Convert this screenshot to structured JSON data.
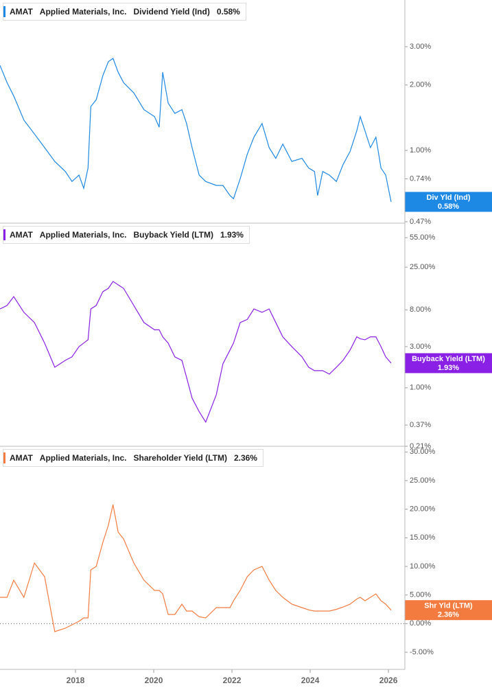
{
  "chart_data": [
    {
      "type": "line",
      "ticker": "AMAT",
      "company": "Applied Materials, Inc.",
      "log_scale": true,
      "xlim": [
        2016.07,
        2026.42
      ],
      "ylim": [
        0.463,
        4.92
      ],
      "yticks": [
        {
          "value": 0.47,
          "label": "0.47%"
        },
        {
          "value": 0.74,
          "label": "0.74%"
        },
        {
          "value": 1,
          "label": "1.00%"
        },
        {
          "value": 2,
          "label": "2.00%"
        },
        {
          "value": 3,
          "label": "3.00%"
        }
      ],
      "x": [
        2016.07,
        2016.25,
        2016.42,
        2016.68,
        2016.95,
        2017.21,
        2017.47,
        2017.74,
        2017.91,
        2018.09,
        2018.21,
        2018.32,
        2018.39,
        2018.53,
        2018.7,
        2018.84,
        2018.96,
        2019.09,
        2019.23,
        2019.49,
        2019.75,
        2020.02,
        2020.14,
        2020.23,
        2020.37,
        2020.54,
        2020.72,
        2020.84,
        2020.98,
        2021.16,
        2021.33,
        2021.6,
        2021.77,
        2021.95,
        2022.04,
        2022.21,
        2022.39,
        2022.56,
        2022.77,
        2022.95,
        2023.12,
        2023.3,
        2023.53,
        2023.79,
        2023.96,
        2024.11,
        2024.19,
        2024.32,
        2024.49,
        2024.67,
        2024.84,
        2025.02,
        2025.19,
        2025.28,
        2025.4,
        2025.54,
        2025.68,
        2025.81,
        2025.93,
        2026.07
      ],
      "series": [
        {
          "name": "Dividend Yield (Ind)",
          "short_name": "Div Yld (Ind)",
          "color": "#1e88e5",
          "last_label": "0.58%",
          "values": [
            2.46,
            2.05,
            1.78,
            1.38,
            1.19,
            1.03,
            0.89,
            0.8,
            0.72,
            0.77,
            0.67,
            0.83,
            1.59,
            1.71,
            2.21,
            2.56,
            2.65,
            2.29,
            2.05,
            1.84,
            1.54,
            1.43,
            1.28,
            2.29,
            1.65,
            1.48,
            1.54,
            1.33,
            1.03,
            0.77,
            0.72,
            0.69,
            0.69,
            0.62,
            0.6,
            0.74,
            0.96,
            1.15,
            1.33,
            1.03,
            0.92,
            1.07,
            0.89,
            0.92,
            0.83,
            0.8,
            0.62,
            0.8,
            0.77,
            0.72,
            0.86,
            0.99,
            1.23,
            1.43,
            1.23,
            1.03,
            1.15,
            0.83,
            0.77,
            0.58
          ]
        }
      ]
    },
    {
      "type": "line",
      "ticker": "AMAT",
      "company": "Applied Materials, Inc.",
      "log_scale": true,
      "xlim": [
        2016.07,
        2026.42
      ],
      "ylim": [
        0.21,
        81
      ],
      "yticks": [
        {
          "value": 0.21,
          "label": "0.21%"
        },
        {
          "value": 0.37,
          "label": "0.37%"
        },
        {
          "value": 1,
          "label": "1.00%"
        },
        {
          "value": 3,
          "label": "3.00%"
        },
        {
          "value": 8,
          "label": "8.00%"
        },
        {
          "value": 25,
          "label": "25.00%"
        },
        {
          "value": 55,
          "label": "55.00%"
        }
      ],
      "x": [
        2016.07,
        2016.25,
        2016.42,
        2016.68,
        2016.95,
        2017.21,
        2017.47,
        2017.74,
        2017.91,
        2018.09,
        2018.21,
        2018.32,
        2018.39,
        2018.53,
        2018.7,
        2018.84,
        2018.96,
        2019.09,
        2019.23,
        2019.49,
        2019.75,
        2020.02,
        2020.14,
        2020.23,
        2020.37,
        2020.54,
        2020.72,
        2020.84,
        2020.98,
        2021.16,
        2021.33,
        2021.6,
        2021.77,
        2021.95,
        2022.04,
        2022.21,
        2022.39,
        2022.56,
        2022.77,
        2022.95,
        2023.12,
        2023.3,
        2023.53,
        2023.79,
        2023.96,
        2024.11,
        2024.19,
        2024.32,
        2024.49,
        2024.67,
        2024.84,
        2025.02,
        2025.19,
        2025.28,
        2025.4,
        2025.54,
        2025.68,
        2025.81,
        2025.93,
        2026.07
      ],
      "series": [
        {
          "name": "Buyback Yield (LTM)",
          "short_name": "Buyback Yield (LTM)",
          "color": "#8a1fe6",
          "last_label": "1.93%",
          "values": [
            8.2,
            9.0,
            11.4,
            7.5,
            5.7,
            3.3,
            1.73,
            2.08,
            2.28,
            3.0,
            3.3,
            3.6,
            8.2,
            9.0,
            13.0,
            14.2,
            17.1,
            15.6,
            14.2,
            9.0,
            5.7,
            4.7,
            4.7,
            3.9,
            3.3,
            2.28,
            2.08,
            1.32,
            0.76,
            0.53,
            0.4,
            0.83,
            1.9,
            2.74,
            3.3,
            5.7,
            6.2,
            8.2,
            7.5,
            8.2,
            5.7,
            3.9,
            3.0,
            2.28,
            1.73,
            1.58,
            1.58,
            1.58,
            1.44,
            1.73,
            2.08,
            2.74,
            3.9,
            3.7,
            3.6,
            3.9,
            3.9,
            3.0,
            2.28,
            1.93
          ]
        }
      ]
    },
    {
      "type": "line",
      "ticker": "AMAT",
      "company": "Applied Materials, Inc.",
      "log_scale": false,
      "zero_line": true,
      "xlim": [
        2016.07,
        2026.42
      ],
      "ylim": [
        -8,
        31
      ],
      "xticks": [
        2018,
        2020,
        2022,
        2024,
        2026
      ],
      "yticks": [
        {
          "value": -5,
          "label": "-5.00%"
        },
        {
          "value": 0,
          "label": "0.00%"
        },
        {
          "value": 5,
          "label": "5.00%"
        },
        {
          "value": 10,
          "label": "10.00%"
        },
        {
          "value": 15,
          "label": "15.00%"
        },
        {
          "value": 20,
          "label": "20.00%"
        },
        {
          "value": 25,
          "label": "25.00%"
        },
        {
          "value": 30,
          "label": "30.00%"
        }
      ],
      "x": [
        2016.07,
        2016.25,
        2016.42,
        2016.68,
        2016.95,
        2017.21,
        2017.47,
        2017.74,
        2017.91,
        2018.09,
        2018.21,
        2018.32,
        2018.39,
        2018.53,
        2018.7,
        2018.84,
        2018.96,
        2019.09,
        2019.23,
        2019.49,
        2019.75,
        2020.02,
        2020.14,
        2020.23,
        2020.37,
        2020.54,
        2020.72,
        2020.84,
        2020.98,
        2021.16,
        2021.33,
        2021.6,
        2021.77,
        2021.95,
        2022.04,
        2022.21,
        2022.39,
        2022.56,
        2022.77,
        2022.95,
        2023.12,
        2023.3,
        2023.53,
        2023.79,
        2023.96,
        2024.11,
        2024.19,
        2024.32,
        2024.49,
        2024.67,
        2024.84,
        2025.02,
        2025.19,
        2025.28,
        2025.4,
        2025.54,
        2025.68,
        2025.81,
        2025.93,
        2026.07
      ],
      "series": [
        {
          "name": "Shareholder Yield (LTM)",
          "short_name": "Shr Yld (LTM)",
          "color": "#f47b3f",
          "last_label": "2.36%",
          "values": [
            4.6,
            4.6,
            7.6,
            4.6,
            10.6,
            8.2,
            -1.4,
            -0.8,
            -0.2,
            0.4,
            1.0,
            1.0,
            9.4,
            10.0,
            14.2,
            17.2,
            20.8,
            16.0,
            14.8,
            10.6,
            7.6,
            5.8,
            5.8,
            5.2,
            1.6,
            1.6,
            3.4,
            2.2,
            2.2,
            1.2,
            1.0,
            2.8,
            2.8,
            2.8,
            4.0,
            5.8,
            8.2,
            9.4,
            10.0,
            7.6,
            5.8,
            4.6,
            3.4,
            2.8,
            2.4,
            2.2,
            2.2,
            2.2,
            2.2,
            2.5,
            2.9,
            3.4,
            4.3,
            4.6,
            4.0,
            4.6,
            5.2,
            4.0,
            3.4,
            2.36
          ]
        }
      ]
    }
  ]
}
